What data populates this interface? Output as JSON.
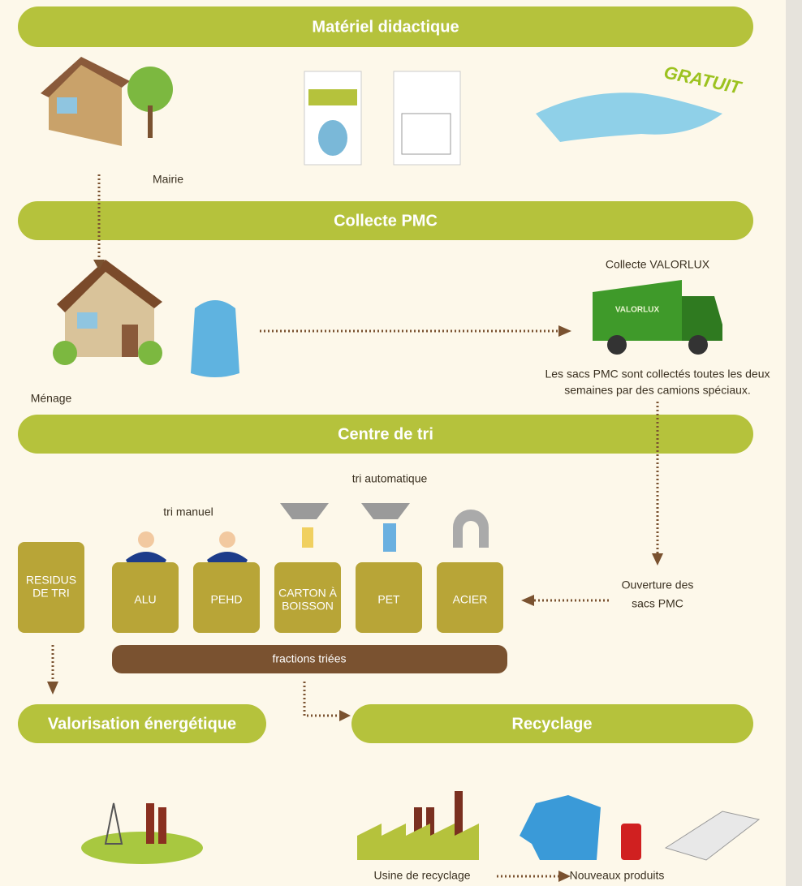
{
  "sections": {
    "materiel": "Matériel didactique",
    "collecte": "Collecte PMC",
    "centre": "Centre de tri",
    "valorisation": "Valorisation énergétique",
    "recyclage": "Recyclage"
  },
  "badge": "GRATUIT",
  "labels": {
    "mairie": "Mairie",
    "menage": "Ménage",
    "collecte_valorlux": "Collecte VALORLUX",
    "truck": "VALORLUX",
    "note": [
      "Les sacs PMC sont collectés toutes les deux",
      "semaines par des camions spéciaux."
    ],
    "tri_automatique": "tri automatique",
    "tri_manuel": "tri manuel",
    "ouverture": [
      "Ouverture des",
      "sacs PMC"
    ],
    "fractions": "fractions triées",
    "usine": "Usine de recyclage",
    "produits": "Nouveaux produits"
  },
  "bins": [
    [
      "RESIDUS",
      "DE TRI"
    ],
    [
      "ALU"
    ],
    [
      "PEHD"
    ],
    [
      "CARTON À",
      "BOISSON"
    ],
    [
      "PET"
    ],
    [
      "ACIER"
    ]
  ]
}
